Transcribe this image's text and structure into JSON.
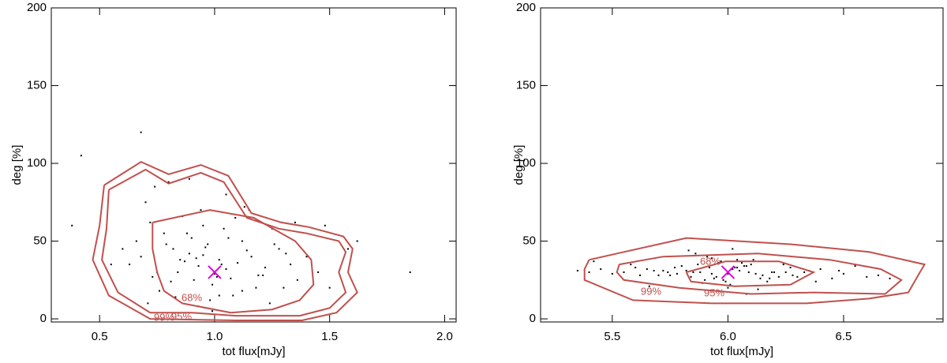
{
  "chart_data": [
    {
      "type": "scatter",
      "x_label": "tot flux[mJy]",
      "y_label": "deg [%]",
      "xlim": [
        0.29,
        2.05
      ],
      "ylim": [
        -2,
        200
      ],
      "xticks": [
        0.5,
        {
          "value": 1,
          "label": "1.0"
        },
        1.5,
        {
          "value": 2,
          "label": "2.0"
        }
      ],
      "yticks": [
        0,
        50,
        100,
        150,
        200
      ],
      "points": {
        "color": "#000000",
        "x": [
          0.82,
          1.05,
          0.95,
          1.21,
          0.68,
          1.12,
          0.99,
          0.88,
          1.33,
          0.76,
          1.02,
          1.15,
          0.91,
          0.72,
          1.28,
          1.08,
          0.97,
          0.84,
          1.4,
          0.63,
          1.18,
          0.93,
          1.06,
          0.79,
          1.25,
          0.89,
          1.01,
          1.1,
          0.7,
          1.36,
          0.86,
          0.98,
          1.14,
          0.75,
          1.22,
          0.92,
          1.04,
          0.81,
          1.3,
          0.66,
          1.09,
          0.95,
          1.19,
          0.87,
          1.0,
          0.78,
          1.26,
          0.94,
          1.12,
          0.6,
          1.45,
          0.83,
          1.03,
          0.9,
          1.16,
          0.73,
          1.35,
          0.96,
          1.07,
          0.85,
          0.42,
          1.58,
          0.55,
          1.5,
          0.68,
          1.85,
          0.38,
          1.62,
          0.74,
          1.24,
          0.99,
          1.05,
          0.89,
          1.13,
          0.8,
          1.02,
          0.93,
          1.31,
          0.71,
          1.48
        ],
        "y": [
          45,
          32,
          60,
          28,
          40,
          50,
          22,
          55,
          35,
          18,
          38,
          70,
          25,
          62,
          45,
          15,
          48,
          30,
          40,
          35,
          20,
          8,
          52,
          48,
          58,
          42,
          27,
          36,
          75,
          25,
          66,
          12,
          44,
          30,
          33,
          39,
          58,
          24,
          20,
          50,
          65,
          41,
          28,
          37,
          29,
          55,
          48,
          70,
          18,
          45,
          30,
          14,
          35,
          52,
          40,
          27,
          62,
          46,
          26,
          38,
          105,
          45,
          35,
          20,
          120,
          30,
          60,
          50,
          85,
          10,
          5,
          80,
          90,
          72,
          88,
          15,
          34,
          42,
          10,
          60
        ]
      },
      "contours": [
        {
          "name": "68%",
          "color": "#c0504d",
          "x": [
            0.73,
            0.98,
            1.17,
            1.35,
            1.42,
            1.43,
            1.37,
            1.25,
            1.07,
            0.86,
            0.78,
            0.75,
            0.73,
            0.73
          ],
          "y": [
            62,
            70,
            65,
            50,
            38,
            22,
            12,
            6,
            4,
            10,
            18,
            30,
            45,
            62
          ]
        },
        {
          "name": "95%",
          "color": "#c0504d",
          "x": [
            0.54,
            0.7,
            0.8,
            0.94,
            1.04,
            1.14,
            1.28,
            1.4,
            1.54,
            1.57,
            1.54,
            1.57,
            1.5,
            1.37,
            1.09,
            0.9,
            0.72,
            0.58,
            0.51,
            0.53,
            0.54
          ],
          "y": [
            83,
            96,
            87,
            94,
            88,
            65,
            58,
            55,
            50,
            43,
            30,
            17,
            7,
            2,
            2,
            4,
            4,
            17,
            38,
            58,
            83
          ]
        },
        {
          "name": "99%",
          "color": "#c0504d",
          "x": [
            0.52,
            0.68,
            0.8,
            0.94,
            1.06,
            1.16,
            1.29,
            1.41,
            1.56,
            1.6,
            1.58,
            1.62,
            1.53,
            1.38,
            1.09,
            0.72,
            0.54,
            0.47,
            0.5,
            0.52
          ],
          "y": [
            86,
            101,
            93,
            99,
            92,
            68,
            62,
            59,
            53,
            45,
            30,
            17,
            4,
            -1,
            -1,
            0,
            15,
            38,
            60,
            86
          ]
        }
      ],
      "marker": {
        "x": 1.0,
        "y": 30,
        "color": "#e000e0"
      }
    },
    {
      "type": "scatter",
      "x_label": "tot flux[mJy]",
      "y_label": "deg [%]",
      "xlim": [
        5.19,
        6.93
      ],
      "ylim": [
        -2,
        200
      ],
      "xticks": [
        5.5,
        {
          "value": 6,
          "label": "6.0"
        },
        6.5
      ],
      "yticks": [
        0,
        50,
        100,
        150,
        200
      ],
      "points": {
        "color": "#000000",
        "x": [
          5.85,
          6.02,
          5.95,
          6.1,
          5.78,
          6.18,
          5.92,
          6.05,
          5.7,
          6.25,
          5.98,
          6.08,
          5.88,
          6.15,
          5.65,
          6.3,
          5.96,
          6.01,
          5.82,
          6.12,
          5.6,
          6.2,
          5.9,
          6.04,
          5.75,
          6.35,
          5.99,
          6.07,
          5.87,
          6.22,
          5.55,
          6.4,
          5.93,
          6.0,
          5.8,
          6.14,
          5.68,
          6.28,
          5.97,
          6.09,
          5.45,
          6.5,
          5.84,
          6.03,
          5.91,
          6.17,
          5.72,
          6.33,
          5.94,
          6.06,
          5.4,
          6.55,
          5.62,
          6.45,
          5.77,
          6.24,
          5.89,
          6.11,
          5.5,
          6.6,
          5.35,
          6.65,
          5.58,
          6.38,
          5.86,
          6.13,
          5.74,
          6.27,
          6.02,
          5.96,
          6.7,
          5.42,
          6.48,
          5.66,
          6.19,
          5.83,
          6.08,
          5.93,
          6.0,
          6.04
        ],
        "y": [
          30,
          32,
          27,
          35,
          29,
          26,
          33,
          31,
          28,
          30,
          25,
          34,
          30,
          28,
          32,
          27,
          36,
          22,
          31,
          29,
          33,
          30,
          25,
          38,
          28,
          31,
          24,
          34,
          35,
          27,
          30,
          32,
          29,
          20,
          34,
          26,
          31,
          28,
          37,
          30,
          32,
          29,
          27,
          33,
          40,
          24,
          31,
          30,
          26,
          36,
          30,
          34,
          28,
          26,
          33,
          35,
          23,
          38,
          29,
          27,
          31,
          28,
          35,
          24,
          42,
          19,
          30,
          33,
          45,
          18,
          26,
          37,
          31,
          21,
          30,
          44,
          16,
          39,
          29,
          33
        ]
      },
      "contours": [
        {
          "name": "68%",
          "color": "#c0504d",
          "x": [
            5.82,
            5.99,
            6.22,
            6.37,
            6.27,
            6.03,
            5.84,
            5.82
          ],
          "y": [
            30,
            37,
            37,
            30,
            22,
            21,
            24,
            30
          ]
        },
        {
          "name": "95%",
          "color": "#c0504d",
          "x": [
            5.53,
            5.72,
            6.13,
            6.44,
            6.66,
            6.75,
            6.68,
            6.37,
            6.1,
            5.79,
            5.55,
            5.52,
            5.53
          ],
          "y": [
            35,
            40,
            42,
            38,
            32,
            25,
            16,
            17,
            16,
            20,
            25,
            30,
            35
          ]
        },
        {
          "name": "99%",
          "color": "#c0504d",
          "x": [
            5.4,
            5.55,
            5.82,
            6.27,
            6.61,
            6.85,
            6.83,
            6.78,
            6.61,
            6.34,
            5.93,
            5.59,
            5.38,
            5.38,
            5.4
          ],
          "y": [
            38,
            43,
            52,
            48,
            43,
            35,
            30,
            17,
            13,
            10,
            10,
            12,
            25,
            32,
            38
          ]
        }
      ],
      "marker": {
        "x": 6.0,
        "y": 30,
        "color": "#e000e0"
      }
    }
  ]
}
